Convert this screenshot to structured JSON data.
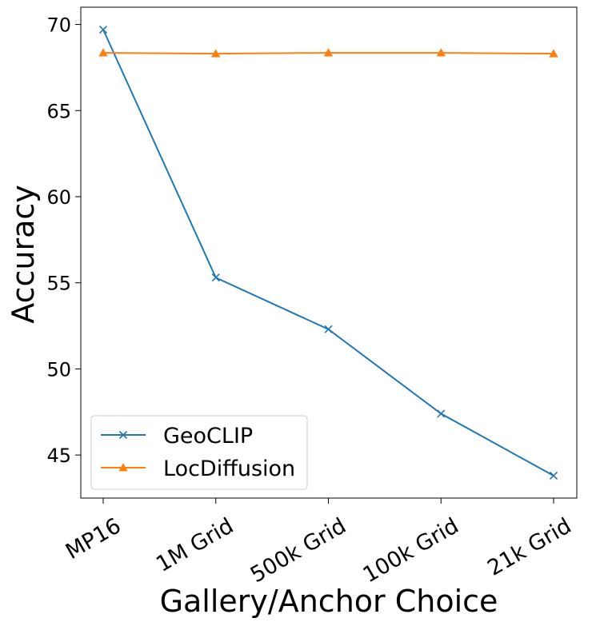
{
  "chart_data": {
    "type": "line",
    "categories": [
      "MP16",
      "1M Grid",
      "500k Grid",
      "100k Grid",
      "21k Grid"
    ],
    "series": [
      {
        "name": "GeoCLIP",
        "values": [
          69.7,
          55.3,
          52.3,
          47.4,
          43.8
        ],
        "color": "#1f77b4",
        "marker": "x"
      },
      {
        "name": "LocDiffusion",
        "values": [
          68.35,
          68.3,
          68.35,
          68.35,
          68.3
        ],
        "color": "#ff7f0e",
        "marker": "triangle"
      }
    ],
    "xlabel": "Gallery/Anchor Choice",
    "ylabel": "Accuracy",
    "ylim": [
      42.5,
      71.0
    ],
    "yticks": [
      45,
      50,
      55,
      60,
      65,
      70
    ],
    "grid": false,
    "legend_position": "lower-left"
  }
}
